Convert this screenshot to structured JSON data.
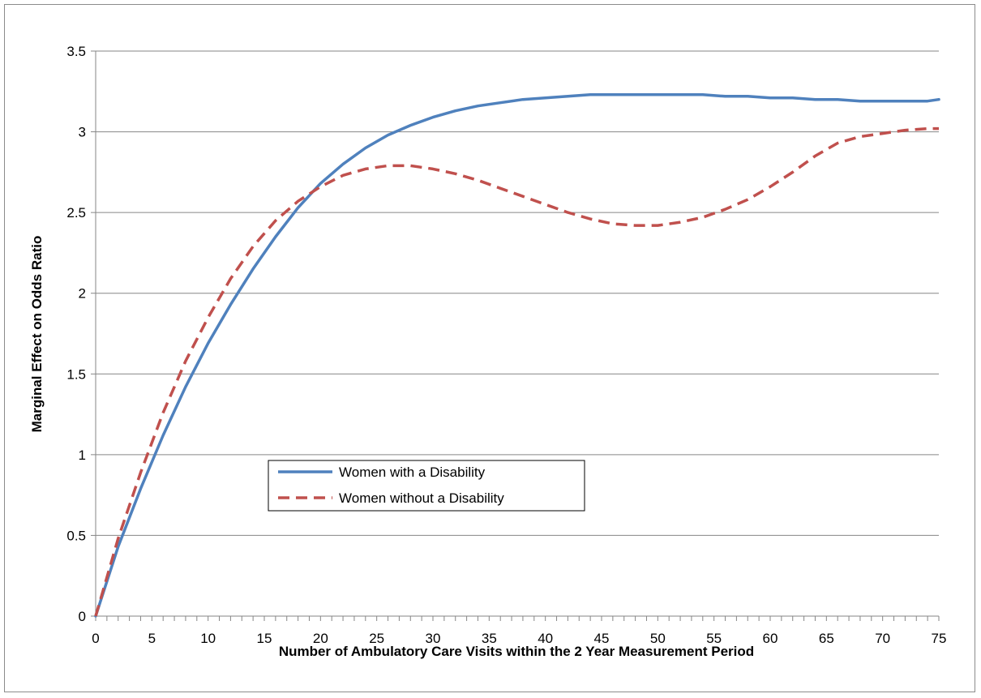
{
  "chart_data": {
    "type": "line",
    "title": "",
    "xlabel": "Number of Ambulatory Care Visits within the 2 Year Measurement Period",
    "ylabel": "Marginal Effect on Odds Ratio",
    "xlim": [
      0,
      75
    ],
    "ylim": [
      0,
      3.5
    ],
    "x_ticks": [
      "0",
      "5",
      "10",
      "15",
      "20",
      "25",
      "30",
      "35",
      "40",
      "45",
      "50",
      "55",
      "60",
      "65",
      "70",
      "75"
    ],
    "y_ticks": [
      "0",
      "0.5",
      "1",
      "1.5",
      "2",
      "2.5",
      "3",
      "3.5"
    ],
    "grid": "horizontal",
    "legend_position": "center-left",
    "x": [
      0,
      2,
      4,
      6,
      8,
      10,
      12,
      14,
      16,
      18,
      20,
      22,
      24,
      26,
      28,
      30,
      32,
      34,
      36,
      38,
      40,
      42,
      44,
      46,
      48,
      50,
      52,
      54,
      56,
      58,
      60,
      62,
      64,
      66,
      68,
      70,
      72,
      74,
      75
    ],
    "series": [
      {
        "name": "Women with a Disability",
        "color": "#4f81bd",
        "style": "solid",
        "values": [
          0,
          0.43,
          0.79,
          1.12,
          1.42,
          1.69,
          1.93,
          2.15,
          2.35,
          2.53,
          2.68,
          2.8,
          2.9,
          2.98,
          3.04,
          3.09,
          3.13,
          3.16,
          3.18,
          3.2,
          3.21,
          3.22,
          3.23,
          3.23,
          3.23,
          3.23,
          3.23,
          3.23,
          3.22,
          3.22,
          3.21,
          3.21,
          3.2,
          3.2,
          3.19,
          3.19,
          3.19,
          3.19,
          3.2
        ]
      },
      {
        "name": "Women without a Disability",
        "color": "#c0504d",
        "style": "dashed",
        "values": [
          0,
          0.48,
          0.89,
          1.26,
          1.58,
          1.85,
          2.09,
          2.29,
          2.45,
          2.57,
          2.66,
          2.73,
          2.77,
          2.79,
          2.79,
          2.77,
          2.74,
          2.7,
          2.65,
          2.6,
          2.55,
          2.5,
          2.46,
          2.43,
          2.42,
          2.42,
          2.44,
          2.47,
          2.52,
          2.58,
          2.66,
          2.75,
          2.85,
          2.93,
          2.97,
          2.99,
          3.01,
          3.02,
          3.02
        ]
      }
    ]
  }
}
